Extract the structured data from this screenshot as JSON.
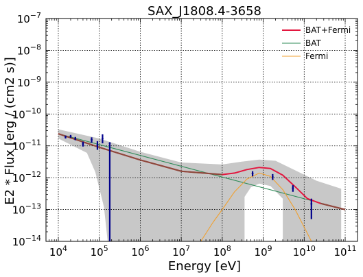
{
  "chart_data": {
    "type": "line",
    "title": "SAX_J1808.4-3658",
    "xlabel": "Energy [eV]",
    "ylabel": "E2 * Flux [erg / (cm2 s)]",
    "xscale": "log",
    "yscale": "log",
    "xlim": [
      5000,
      200000000000
    ],
    "ylim": [
      1e-14,
      1e-07
    ],
    "grid": true,
    "legend_position": "top-right",
    "x_tick_labels": [
      {
        "exp": 4,
        "base": "10",
        "sup": "4"
      },
      {
        "exp": 5,
        "base": "10",
        "sup": "5"
      },
      {
        "exp": 6,
        "base": "10",
        "sup": "6"
      },
      {
        "exp": 7,
        "base": "10",
        "sup": "7"
      },
      {
        "exp": 8,
        "base": "10",
        "sup": "8"
      },
      {
        "exp": 9,
        "base": "10",
        "sup": "9"
      },
      {
        "exp": 10,
        "base": "10",
        "sup": "10"
      },
      {
        "exp": 11,
        "base": "10",
        "sup": "11"
      }
    ],
    "y_tick_labels": [
      {
        "exp": -7,
        "base": "10",
        "sup": "−7"
      },
      {
        "exp": -8,
        "base": "10",
        "sup": "−8"
      },
      {
        "exp": -9,
        "base": "10",
        "sup": "−9"
      },
      {
        "exp": -10,
        "base": "10",
        "sup": "−10"
      },
      {
        "exp": -11,
        "base": "10",
        "sup": "−11"
      },
      {
        "exp": -12,
        "base": "10",
        "sup": "−12"
      },
      {
        "exp": -13,
        "base": "10",
        "sup": "−13"
      },
      {
        "exp": -14,
        "base": "10",
        "sup": "−14"
      }
    ],
    "series": [
      {
        "name": "BAT+Fermi",
        "color": "#e3173f",
        "style": "solid",
        "points": [
          [
            10000.0,
            2.4e-11
          ],
          [
            100000.0,
            9e-12
          ],
          [
            1000000.0,
            3.6e-12
          ],
          [
            10000000.0,
            1.6e-12
          ],
          [
            100000000.0,
            1.25e-12
          ],
          [
            200000000.0,
            1.4e-12
          ],
          [
            400000000.0,
            1.8e-12
          ],
          [
            800000000.0,
            2.1e-12
          ],
          [
            1500000000.0,
            1.95e-12
          ],
          [
            3000000000.0,
            1.2e-12
          ],
          [
            6000000000.0,
            5.2e-13
          ],
          [
            12000000000.0,
            2.2e-13
          ],
          [
            25000000000.0,
            1.55e-13
          ],
          [
            100000000000.0,
            1e-13
          ]
        ]
      },
      {
        "name": "BAT",
        "color": "#2e8b57",
        "style": "solid",
        "points": [
          [
            10000.0,
            2.4e-11
          ],
          [
            100000000000.0,
            1e-13
          ]
        ]
      },
      {
        "name": "Fermi",
        "color": "#f0a030",
        "style": "solid",
        "points": [
          [
            30000000.0,
            1e-14
          ],
          [
            60000000.0,
            4e-14
          ],
          [
            100000000.0,
            1e-13
          ],
          [
            200000000.0,
            3.6e-13
          ],
          [
            400000000.0,
            9e-13
          ],
          [
            800000000.0,
            1.4e-12
          ],
          [
            1500000000.0,
            1.1e-12
          ],
          [
            3000000000.0,
            4.2e-13
          ],
          [
            6000000000.0,
            1e-13
          ],
          [
            10000000000.0,
            2.8e-14
          ],
          [
            15000000000.0,
            1e-14
          ]
        ]
      }
    ],
    "uncertainty_band": {
      "color": "#c8c8c8",
      "upper": [
        [
          10000.0,
          3.3e-11
        ],
        [
          100000.0,
          1.7e-11
        ],
        [
          1000000.0,
          6.5e-12
        ],
        [
          10000000.0,
          3e-12
        ],
        [
          100000000.0,
          2.6e-12
        ],
        [
          300000000.0,
          3.2e-12
        ],
        [
          800000000.0,
          3.7e-12
        ],
        [
          2000000000.0,
          3.4e-12
        ],
        [
          6000000000.0,
          1.7e-12
        ],
        [
          20000000000.0,
          8e-13
        ],
        [
          80000000000.0,
          4.5e-13
        ]
      ],
      "lower": [
        [
          10000.0,
          1.7e-11
        ],
        [
          50000.0,
          6e-12
        ],
        [
          80000.0,
          1.5e-12
        ],
        [
          130000.0,
          1.2e-13
        ],
        [
          160000.0,
          1e-14
        ],
        [
          350000000.0,
          1e-14
        ],
        [
          350000000.0,
          2.5e-13
        ],
        [
          500000000.0,
          5e-13
        ],
        [
          800000000.0,
          6.5e-13
        ],
        [
          1500000000.0,
          5.5e-13
        ],
        [
          3000000000.0,
          2.2e-13
        ],
        [
          3000000000.0,
          1e-14
        ],
        [
          30000000000.0,
          1e-14
        ],
        [
          50000000000.0,
          1e-14
        ],
        [
          80000000000.0,
          1e-14
        ]
      ]
    },
    "data_points": [
      {
        "x": 15000.0,
        "y": 1.9e-11,
        "yerr_lo": 1.7e-11,
        "yerr_hi": 2.1e-11
      },
      {
        "x": 20000.0,
        "y": 2e-11,
        "yerr_lo": 1.8e-11,
        "yerr_hi": 2.2e-11
      },
      {
        "x": 26000.0,
        "y": 1.7e-11,
        "yerr_lo": 1.5e-11,
        "yerr_hi": 1.9e-11
      },
      {
        "x": 40000.0,
        "y": 1.15e-11,
        "yerr_lo": 9.5e-12,
        "yerr_hi": 1.35e-11
      },
      {
        "x": 65000.0,
        "y": 1.55e-11,
        "yerr_lo": 1.25e-11,
        "yerr_hi": 1.85e-11
      },
      {
        "x": 90000.0,
        "y": 1.05e-11,
        "yerr_lo": 7.5e-12,
        "yerr_hi": 1.4e-11
      },
      {
        "x": 120000.0,
        "y": 1.7e-11,
        "yerr_lo": 1.2e-11,
        "yerr_hi": 2.3e-11
      },
      {
        "x": 180000.0,
        "y": 1.2e-11,
        "yerr_lo": 1e-14,
        "yerr_hi": 1.3e-11
      },
      {
        "x": 550000000.0,
        "y": 1.35e-12,
        "yerr_lo": 1.1e-12,
        "yerr_hi": 1.6e-12
      },
      {
        "x": 1700000000.0,
        "y": 1.05e-12,
        "yerr_lo": 8.5e-13,
        "yerr_hi": 1.3e-12
      },
      {
        "x": 5300000000.0,
        "y": 4.7e-13,
        "yerr_lo": 3.6e-13,
        "yerr_hi": 5.8e-13
      },
      {
        "x": 15000000000.0,
        "y": 1.5e-13,
        "yerr_lo": 5e-14,
        "yerr_hi": 2.2e-13
      }
    ],
    "data_point_color": "#00008b"
  }
}
